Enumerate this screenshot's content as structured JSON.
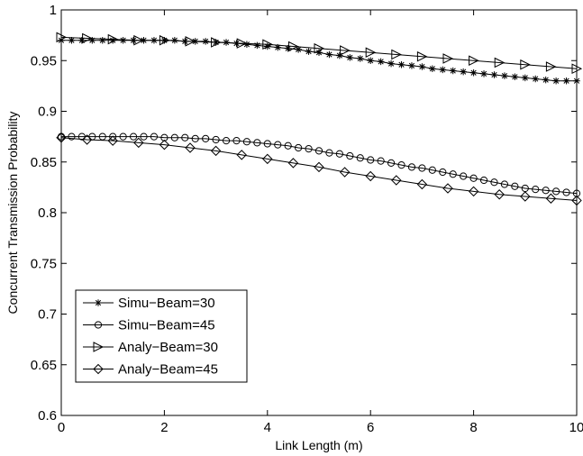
{
  "chart_data": {
    "type": "line",
    "title": "",
    "xlabel": "Link Length (m)",
    "ylabel": "Concurrent Transmission Probability",
    "xlim": [
      0,
      10
    ],
    "ylim": [
      0.6,
      1
    ],
    "xticks": [
      0,
      2,
      4,
      6,
      8,
      10
    ],
    "xtick_labels": [
      "0",
      "2",
      "4",
      "6",
      "8",
      "10"
    ],
    "yticks": [
      0.6,
      0.65,
      0.7,
      0.75,
      0.8,
      0.85,
      0.9,
      0.95,
      1
    ],
    "ytick_labels": [
      "0.6",
      "0.65",
      "0.7",
      "0.75",
      "0.8",
      "0.85",
      "0.9",
      "0.95",
      "1"
    ],
    "grid": false,
    "legend_position": "bottom-left",
    "series": [
      {
        "name": "Simu−Beam=30",
        "marker": "star",
        "x": [
          0,
          0.2,
          0.4,
          0.6,
          0.8,
          1,
          1.2,
          1.4,
          1.6,
          1.8,
          2,
          2.2,
          2.4,
          2.6,
          2.8,
          3,
          3.2,
          3.4,
          3.6,
          3.8,
          4,
          4.2,
          4.4,
          4.6,
          4.8,
          5,
          5.2,
          5.4,
          5.6,
          5.8,
          6,
          6.2,
          6.4,
          6.6,
          6.8,
          7,
          7.2,
          7.4,
          7.6,
          7.8,
          8,
          8.2,
          8.4,
          8.6,
          8.8,
          9,
          9.2,
          9.4,
          9.6,
          9.8,
          10
        ],
        "values": [
          0.97,
          0.97,
          0.97,
          0.97,
          0.97,
          0.97,
          0.97,
          0.97,
          0.97,
          0.97,
          0.97,
          0.97,
          0.969,
          0.969,
          0.969,
          0.968,
          0.968,
          0.967,
          0.966,
          0.965,
          0.964,
          0.963,
          0.962,
          0.961,
          0.959,
          0.958,
          0.956,
          0.955,
          0.953,
          0.952,
          0.95,
          0.949,
          0.947,
          0.946,
          0.945,
          0.944,
          0.942,
          0.941,
          0.94,
          0.939,
          0.938,
          0.937,
          0.936,
          0.935,
          0.934,
          0.933,
          0.932,
          0.931,
          0.93,
          0.93,
          0.93
        ]
      },
      {
        "name": "Simu−Beam=45",
        "marker": "circle",
        "x": [
          0,
          0.2,
          0.4,
          0.6,
          0.8,
          1,
          1.2,
          1.4,
          1.6,
          1.8,
          2,
          2.2,
          2.4,
          2.6,
          2.8,
          3,
          3.2,
          3.4,
          3.6,
          3.8,
          4,
          4.2,
          4.4,
          4.6,
          4.8,
          5,
          5.2,
          5.4,
          5.6,
          5.8,
          6,
          6.2,
          6.4,
          6.6,
          6.8,
          7,
          7.2,
          7.4,
          7.6,
          7.8,
          8,
          8.2,
          8.4,
          8.6,
          8.8,
          9,
          9.2,
          9.4,
          9.6,
          9.8,
          10
        ],
        "values": [
          0.875,
          0.875,
          0.875,
          0.875,
          0.875,
          0.875,
          0.875,
          0.875,
          0.875,
          0.875,
          0.874,
          0.874,
          0.874,
          0.873,
          0.873,
          0.872,
          0.871,
          0.871,
          0.87,
          0.869,
          0.868,
          0.867,
          0.866,
          0.864,
          0.863,
          0.861,
          0.859,
          0.858,
          0.856,
          0.854,
          0.852,
          0.851,
          0.849,
          0.847,
          0.845,
          0.844,
          0.842,
          0.84,
          0.838,
          0.836,
          0.834,
          0.832,
          0.83,
          0.828,
          0.826,
          0.824,
          0.823,
          0.822,
          0.821,
          0.82,
          0.819
        ]
      },
      {
        "name": "Analy−Beam=30",
        "marker": "triangle-right",
        "x": [
          0,
          0.5,
          1,
          1.5,
          2,
          2.5,
          3,
          3.5,
          4,
          4.5,
          5,
          5.5,
          6,
          6.5,
          7,
          7.5,
          8,
          8.5,
          9,
          9.5,
          10
        ],
        "values": [
          0.973,
          0.972,
          0.971,
          0.97,
          0.97,
          0.969,
          0.968,
          0.967,
          0.966,
          0.964,
          0.962,
          0.96,
          0.958,
          0.956,
          0.954,
          0.952,
          0.95,
          0.948,
          0.946,
          0.944,
          0.942
        ]
      },
      {
        "name": "Analy−Beam=45",
        "marker": "diamond",
        "x": [
          0,
          0.5,
          1,
          1.5,
          2,
          2.5,
          3,
          3.5,
          4,
          4.5,
          5,
          5.5,
          6,
          6.5,
          7,
          7.5,
          8,
          8.5,
          9,
          9.5,
          10
        ],
        "values": [
          0.874,
          0.872,
          0.871,
          0.869,
          0.867,
          0.864,
          0.861,
          0.857,
          0.853,
          0.849,
          0.845,
          0.84,
          0.836,
          0.832,
          0.828,
          0.824,
          0.821,
          0.818,
          0.816,
          0.814,
          0.812
        ]
      }
    ]
  }
}
